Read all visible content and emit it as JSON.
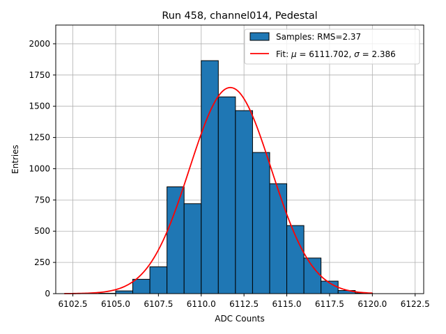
{
  "chart_data": {
    "type": "bar",
    "title": "Run 458, channel014, Pedestal",
    "xlabel": "ADC Counts",
    "ylabel": "Entries",
    "xlim": [
      6101.5,
      6123.0
    ],
    "ylim": [
      0,
      2150
    ],
    "grid": true,
    "legend_position": "top-right",
    "x_ticks": [
      6102.5,
      6105.0,
      6107.5,
      6110.0,
      6112.5,
      6115.0,
      6117.5,
      6120.0,
      6122.5
    ],
    "x_tick_labels": [
      "6102.5",
      "6105.0",
      "6107.5",
      "6110.0",
      "6112.5",
      "6115.0",
      "6117.5",
      "6120.0",
      "6122.5"
    ],
    "y_ticks": [
      0,
      250,
      500,
      750,
      1000,
      1250,
      1500,
      1750,
      2000
    ],
    "y_tick_labels": [
      "0",
      "250",
      "500",
      "750",
      "1000",
      "1250",
      "1500",
      "1750",
      "2000"
    ],
    "histogram": {
      "name": "Samples: RMS=2.37",
      "color": "#1f77b4",
      "edge_color": "#000000",
      "bin_edges": [
        6102,
        6103,
        6104,
        6105,
        6106,
        6107,
        6108,
        6109,
        6110,
        6111,
        6112,
        6113,
        6114,
        6115,
        6116,
        6117,
        6118,
        6119,
        6120,
        6121,
        6122
      ],
      "counts": [
        0,
        0,
        3,
        22,
        115,
        215,
        855,
        720,
        1865,
        1575,
        1465,
        1130,
        880,
        545,
        285,
        100,
        25,
        5,
        0,
        0
      ]
    },
    "fit": {
      "name_prefix": "Fit: ",
      "mu_symbol": "μ",
      "mu_text": " = 6111.702, ",
      "sigma_symbol": "σ",
      "sigma_text": " = 2.386",
      "color": "#ff0000",
      "mu": 6111.702,
      "sigma": 2.386,
      "amplitude": 1650,
      "x_range": [
        6102,
        6120
      ]
    }
  }
}
